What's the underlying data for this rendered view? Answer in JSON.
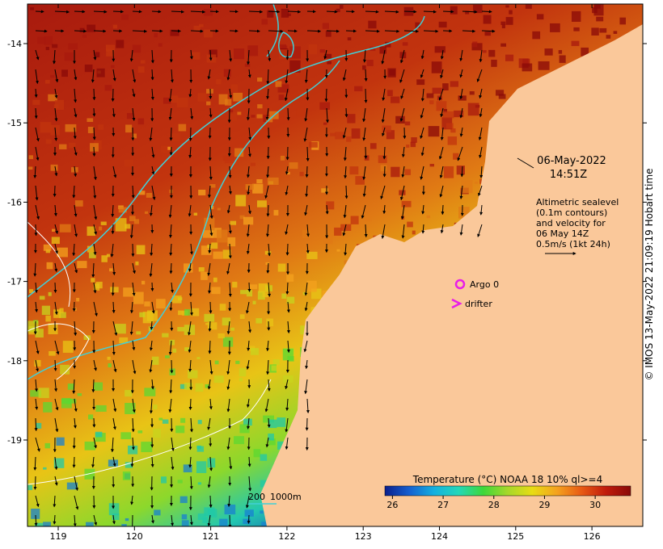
{
  "map": {
    "timestamp_date": "06-May-2022",
    "timestamp_time": "14:51Z",
    "altimetry_lines": [
      "Altimetric sealevel",
      "(0.1m contours)",
      "and velocity for",
      "06 May 14Z",
      "0.5m/s (1kt 24h)"
    ],
    "argo_label": "Argo 0",
    "drifter_label": "drifter",
    "bathymetry_labels": [
      "200",
      "1000m"
    ],
    "credit": "© IMOS 13-May-2022 21:09:19 Hobart time",
    "lon_labels": [
      "119",
      "120",
      "121",
      "122",
      "123",
      "124",
      "125",
      "126"
    ],
    "lat_labels": [
      "-14",
      "-15",
      "-16",
      "-17",
      "-18",
      "-19"
    ],
    "colorbar": {
      "title": "Temperature (°C) NOAA 18 10% ql>=4",
      "tick_labels": [
        "26",
        "27",
        "28",
        "29",
        "30"
      ],
      "min": 25.85,
      "max": 30.7,
      "colors": [
        "#0b1f8c",
        "#1560d0",
        "#14b0e0",
        "#23d8b8",
        "#3ed83a",
        "#a6d82a",
        "#e8dc14",
        "#f4a21e",
        "#e85a14",
        "#c01c0c",
        "#8a0a08"
      ]
    },
    "colors": {
      "land": "#fac89a",
      "shelf_contour": "#40d0d8",
      "argo": "#e81ee8",
      "drifter": "#e81ee8"
    }
  }
}
